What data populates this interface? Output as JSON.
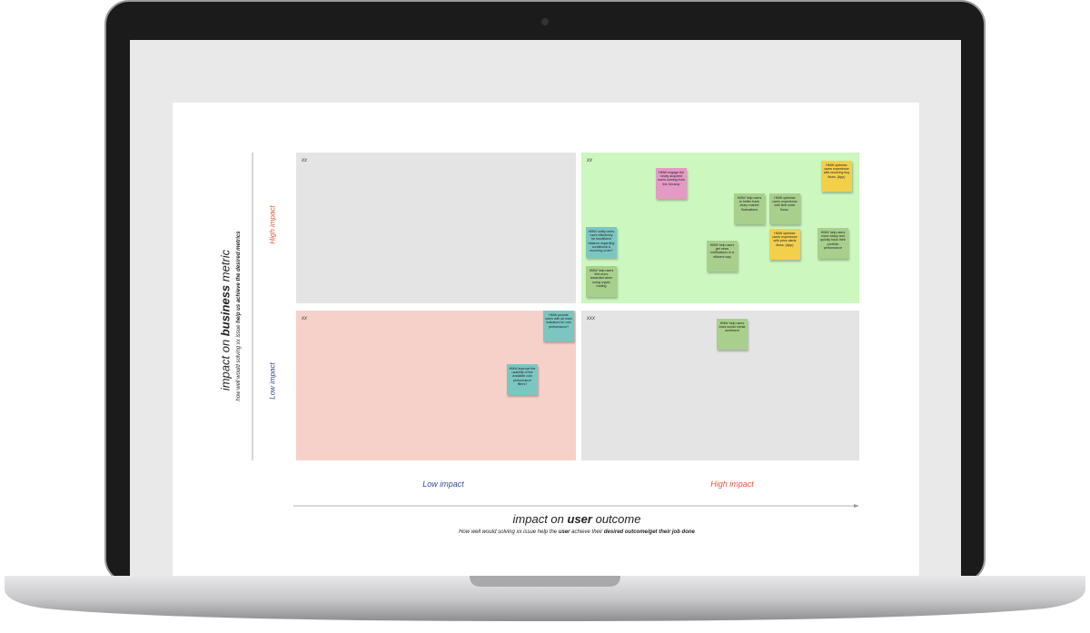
{
  "board": {
    "y_axis": {
      "title": {
        "before": "impact on ",
        "bold": "business",
        "after": " metric"
      },
      "subtitle": {
        "before": "how well would solving xx issue ",
        "bold": "help us achieve the desired metrics"
      },
      "high": "High impact",
      "low": "Low impact"
    },
    "x_axis": {
      "title": {
        "before": "impact on ",
        "bold": "user",
        "after": " outcome"
      },
      "subtitle": {
        "before": "How well would solving xx issue help the ",
        "bold1": "user",
        "middle": " achieve their ",
        "bold2": "desired outcome/get their job done"
      },
      "low": "Low impact",
      "high": "High impact"
    },
    "quadrants": [
      {
        "label": "xx",
        "notes": []
      },
      {
        "label": "xx",
        "notes": [
          "HMW engage the newly acquired users coming from the Onramp",
          "HMW optimise users experience with recurring buy flows. (App)",
          "HMW help users to better track sharp market fluctuations",
          "HMW optimise users experience with limit order flows.",
          "HMW notify users more effectively for insufficient balance regarding conditional & recurring order?",
          "HMW optimise users experience with price alerts flows. (App)",
          "HMW help users more easily and quickly track their portfolio performance",
          "HMW help users get news notifications in a efficient way",
          "HMW help users feel more rewarded when using crypto trading"
        ]
      },
      {
        "label": "xx",
        "notes": [
          "HMW provide users with all main indicators for coin performance?",
          "HMW improve the usability of the available coin performance filters?"
        ]
      },
      {
        "label": "xxx",
        "notes": [
          "HMW help users track social media sentiment"
        ]
      }
    ]
  }
}
